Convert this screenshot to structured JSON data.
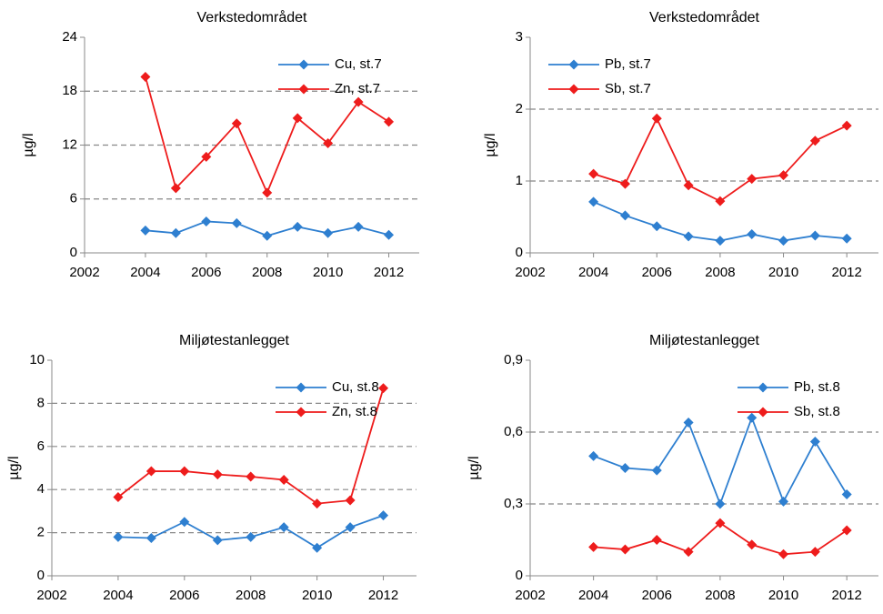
{
  "chart_data": [
    {
      "type": "line",
      "title": "Verkstedområdet",
      "y_label": "µg/l",
      "legend": "upper right",
      "x": [
        2004,
        2005,
        2006,
        2007,
        2008,
        2009,
        2010,
        2011,
        2012
      ],
      "xlim": [
        2002,
        2013
      ],
      "xticks": [
        2002,
        2004,
        2006,
        2008,
        2010,
        2012
      ],
      "ylim": [
        0,
        24
      ],
      "yticks": [
        0,
        6,
        12,
        18,
        24
      ],
      "grid": true,
      "series": [
        {
          "name": "Cu, st.7",
          "color": "#2e7fd0",
          "values": [
            2.5,
            2.2,
            3.5,
            3.3,
            1.9,
            2.9,
            2.2,
            2.9,
            2.0
          ]
        },
        {
          "name": "Zn, st.7",
          "color": "#ee1c1c",
          "values": [
            19.6,
            7.2,
            10.7,
            14.4,
            6.7,
            15.0,
            12.2,
            16.8,
            14.6
          ]
        }
      ]
    },
    {
      "type": "line",
      "title": "Verkstedområdet",
      "y_label": "µg/l",
      "legend": "upper left",
      "x": [
        2004,
        2005,
        2006,
        2007,
        2008,
        2009,
        2010,
        2011,
        2012
      ],
      "xlim": [
        2002,
        2013
      ],
      "xticks": [
        2002,
        2004,
        2006,
        2008,
        2010,
        2012
      ],
      "ylim": [
        0,
        3
      ],
      "yticks": [
        0,
        1,
        2,
        3
      ],
      "grid": true,
      "series": [
        {
          "name": "Pb, st.7",
          "color": "#2e7fd0",
          "values": [
            0.71,
            0.52,
            0.37,
            0.23,
            0.17,
            0.26,
            0.17,
            0.24,
            0.2
          ]
        },
        {
          "name": "Sb, st.7",
          "color": "#ee1c1c",
          "values": [
            1.1,
            0.96,
            1.87,
            0.94,
            0.72,
            1.03,
            1.08,
            1.56,
            1.77
          ]
        }
      ]
    },
    {
      "type": "line",
      "title": "Miljøtestanlegget",
      "y_label": "µg/l",
      "legend": "upper right",
      "x": [
        2004,
        2005,
        2006,
        2007,
        2008,
        2009,
        2010,
        2011,
        2012
      ],
      "xlim": [
        2002,
        2013
      ],
      "xticks": [
        2002,
        2004,
        2006,
        2008,
        2010,
        2012
      ],
      "ylim": [
        0,
        10
      ],
      "yticks": [
        0,
        2,
        4,
        6,
        8,
        10
      ],
      "grid": true,
      "series": [
        {
          "name": "Cu, st.8",
          "color": "#2e7fd0",
          "values": [
            1.8,
            1.75,
            2.5,
            1.65,
            1.8,
            2.25,
            1.3,
            2.25,
            2.8
          ]
        },
        {
          "name": "Zn, st.8",
          "color": "#ee1c1c",
          "values": [
            3.65,
            4.85,
            4.85,
            4.7,
            4.6,
            4.45,
            3.35,
            3.5,
            8.7
          ]
        }
      ]
    },
    {
      "type": "line",
      "title": "Miljøtestanlegget",
      "y_label": "µg/l",
      "legend": "upper right",
      "x": [
        2004,
        2005,
        2006,
        2007,
        2008,
        2009,
        2010,
        2011,
        2012
      ],
      "xlim": [
        2002,
        2013
      ],
      "xticks": [
        2002,
        2004,
        2006,
        2008,
        2010,
        2012
      ],
      "ylim": [
        0,
        0.9
      ],
      "yticks": [
        0,
        {
          "value": 0.3,
          "label": "0,3"
        },
        {
          "value": 0.6,
          "label": "0,6"
        },
        {
          "value": 0.9,
          "label": "0,9"
        }
      ],
      "grid": true,
      "series": [
        {
          "name": "Pb, st.8",
          "color": "#2e7fd0",
          "values": [
            0.5,
            0.45,
            0.44,
            0.64,
            0.3,
            0.66,
            0.31,
            0.56,
            0.34
          ]
        },
        {
          "name": "Sb, st.8",
          "color": "#ee1c1c",
          "values": [
            0.12,
            0.11,
            0.15,
            0.1,
            0.22,
            0.13,
            0.09,
            0.1,
            0.19
          ]
        }
      ]
    }
  ]
}
